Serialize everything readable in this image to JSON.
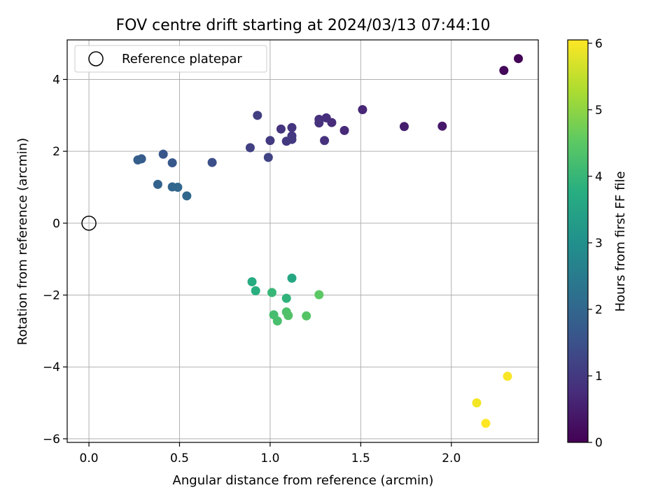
{
  "chart_data": {
    "type": "scatter",
    "title": "FOV centre drift starting at 2024/03/13 07:44:10",
    "xlabel": "Angular distance from reference (arcmin)",
    "ylabel": "Rotation from reference (arcmin)",
    "xlim": [
      -0.12,
      2.48
    ],
    "ylim": [
      -6.1,
      5.1
    ],
    "xticks": [
      0.0,
      0.5,
      1.0,
      1.5,
      2.0
    ],
    "xtick_labels": [
      "0.0",
      "0.5",
      "1.0",
      "1.5",
      "2.0"
    ],
    "yticks": [
      -6,
      -4,
      -2,
      0,
      2,
      4
    ],
    "ytick_labels": [
      "−6",
      "−4",
      "−2",
      "0",
      "2",
      "4"
    ],
    "grid": true,
    "legend": {
      "placement": "top-left",
      "entries": [
        "Reference platepar"
      ]
    },
    "reference_point": {
      "x": 0.0,
      "y": 0.0
    },
    "colorbar": {
      "label": "Hours from first FF file",
      "range": [
        0,
        6.05
      ],
      "ticks": [
        0,
        1,
        2,
        3,
        4,
        5,
        6
      ],
      "tick_labels": [
        "0",
        "1",
        "2",
        "3",
        "4",
        "5",
        "6"
      ],
      "colormap": "viridis"
    },
    "points": [
      {
        "x": 2.37,
        "y": 4.58,
        "c": 0.05
      },
      {
        "x": 2.29,
        "y": 4.25,
        "c": 0.1
      },
      {
        "x": 1.95,
        "y": 2.7,
        "c": 0.4
      },
      {
        "x": 1.74,
        "y": 2.69,
        "c": 0.5
      },
      {
        "x": 1.51,
        "y": 3.16,
        "c": 0.65
      },
      {
        "x": 1.41,
        "y": 2.58,
        "c": 0.7
      },
      {
        "x": 1.34,
        "y": 2.8,
        "c": 0.75
      },
      {
        "x": 1.31,
        "y": 2.93,
        "c": 0.8
      },
      {
        "x": 1.27,
        "y": 2.89,
        "c": 0.8
      },
      {
        "x": 1.27,
        "y": 2.79,
        "c": 0.85
      },
      {
        "x": 1.3,
        "y": 2.3,
        "c": 0.85
      },
      {
        "x": 1.12,
        "y": 2.66,
        "c": 0.9
      },
      {
        "x": 1.06,
        "y": 2.62,
        "c": 0.9
      },
      {
        "x": 1.12,
        "y": 2.43,
        "c": 0.95
      },
      {
        "x": 1.12,
        "y": 2.33,
        "c": 1.0
      },
      {
        "x": 1.09,
        "y": 2.28,
        "c": 1.0
      },
      {
        "x": 1.0,
        "y": 2.3,
        "c": 1.05
      },
      {
        "x": 0.93,
        "y": 3.0,
        "c": 1.1
      },
      {
        "x": 0.89,
        "y": 2.1,
        "c": 1.15
      },
      {
        "x": 0.99,
        "y": 1.83,
        "c": 1.2
      },
      {
        "x": 0.68,
        "y": 1.69,
        "c": 1.45
      },
      {
        "x": 0.41,
        "y": 1.92,
        "c": 1.6
      },
      {
        "x": 0.46,
        "y": 1.68,
        "c": 1.65
      },
      {
        "x": 0.29,
        "y": 1.79,
        "c": 1.75
      },
      {
        "x": 0.27,
        "y": 1.76,
        "c": 1.8
      },
      {
        "x": 0.38,
        "y": 1.08,
        "c": 1.9
      },
      {
        "x": 0.46,
        "y": 1.01,
        "c": 1.95
      },
      {
        "x": 0.49,
        "y": 1.0,
        "c": 2.0
      },
      {
        "x": 0.54,
        "y": 0.76,
        "c": 2.05
      },
      {
        "x": 1.12,
        "y": -1.53,
        "c": 3.6
      },
      {
        "x": 0.9,
        "y": -1.63,
        "c": 3.7
      },
      {
        "x": 0.92,
        "y": -1.88,
        "c": 3.8
      },
      {
        "x": 1.09,
        "y": -2.09,
        "c": 3.9
      },
      {
        "x": 1.01,
        "y": -1.93,
        "c": 4.0
      },
      {
        "x": 1.02,
        "y": -2.55,
        "c": 4.2
      },
      {
        "x": 1.04,
        "y": -2.72,
        "c": 4.25
      },
      {
        "x": 1.09,
        "y": -2.47,
        "c": 4.3
      },
      {
        "x": 1.1,
        "y": -2.57,
        "c": 4.35
      },
      {
        "x": 1.2,
        "y": -2.58,
        "c": 4.4
      },
      {
        "x": 1.27,
        "y": -1.99,
        "c": 4.5
      },
      {
        "x": 2.14,
        "y": -5.0,
        "c": 5.95
      },
      {
        "x": 2.31,
        "y": -4.26,
        "c": 6.0
      },
      {
        "x": 2.19,
        "y": -5.57,
        "c": 6.05
      }
    ]
  }
}
